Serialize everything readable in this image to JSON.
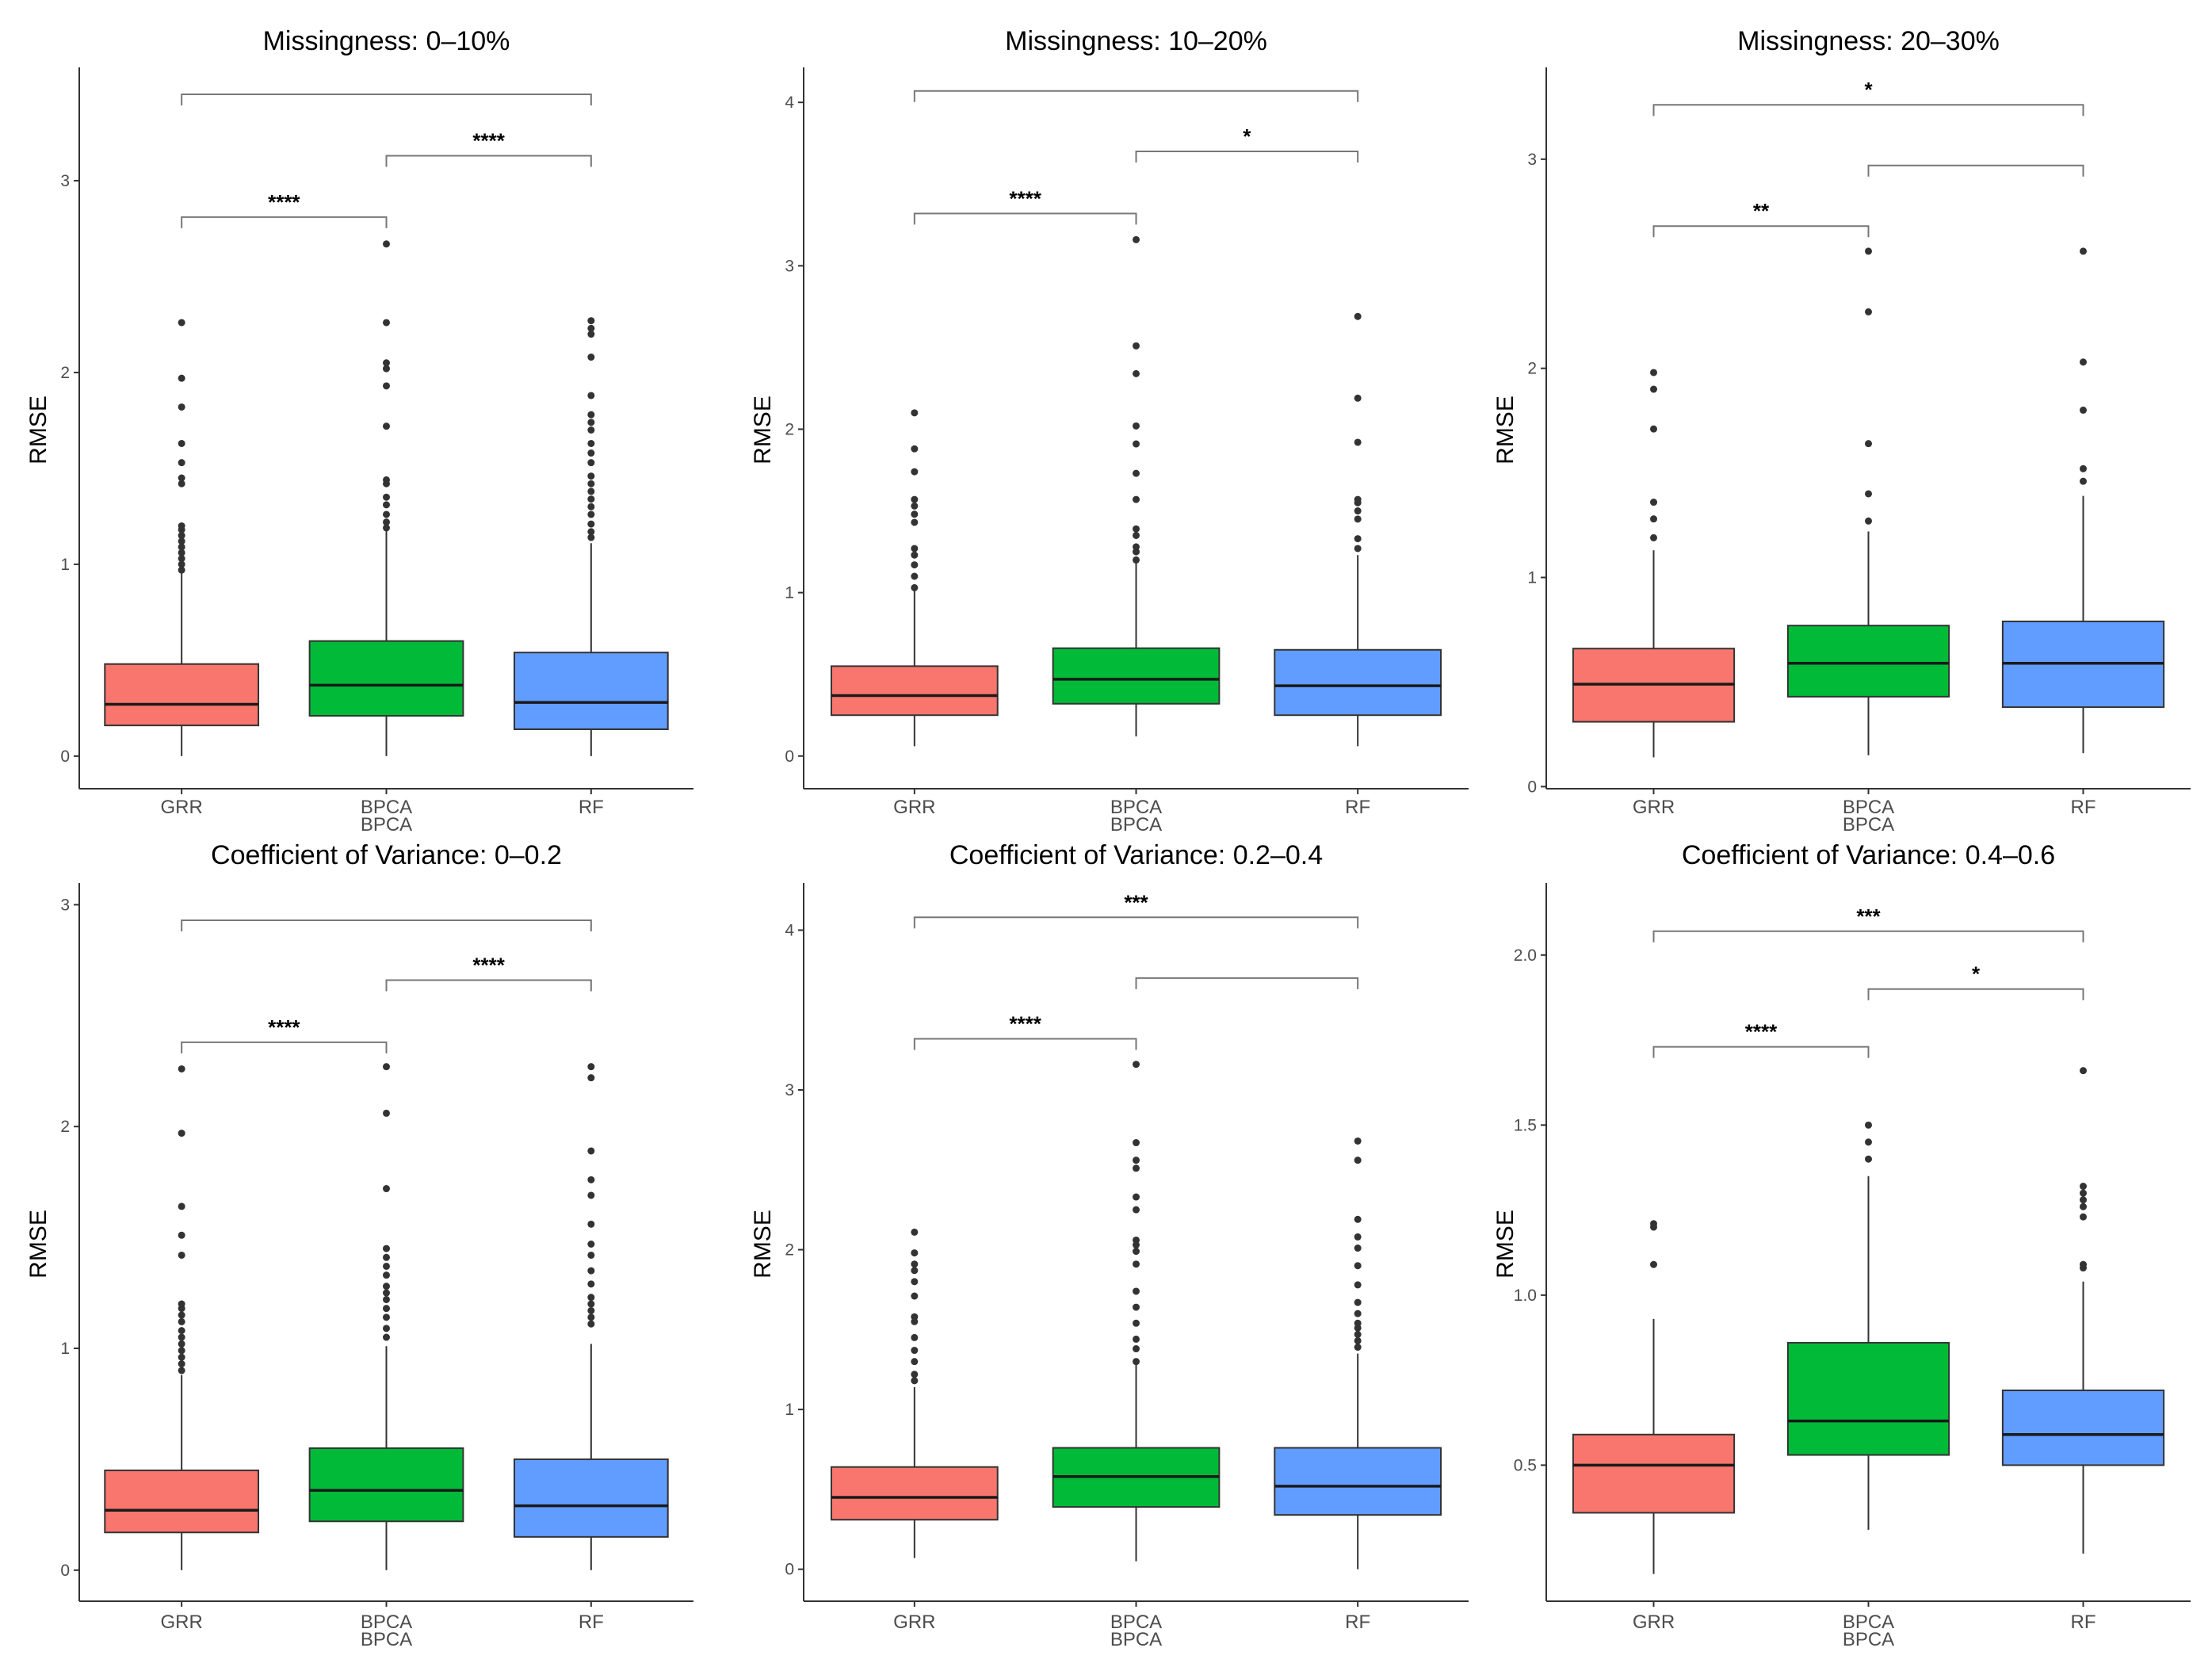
{
  "chart_data": [
    {
      "type": "boxplot",
      "title": "Missingness: 0–10%",
      "xlabel": "BPCA",
      "ylabel": "RMSE",
      "categories": [
        "GRR",
        "BPCA",
        "RF"
      ],
      "colors": [
        "#F8766D",
        "#00BA38",
        "#619CFF"
      ],
      "ylim": [
        -0.17,
        3.57
      ],
      "yticks": [
        0,
        1,
        2,
        3
      ],
      "boxes": [
        {
          "category": "GRR",
          "q1": 0.16,
          "median": 0.27,
          "q3": 0.48,
          "whisker_low": 0.0,
          "whisker_high": 0.96,
          "outliers": [
            0.97,
            1.0,
            1.03,
            1.06,
            1.09,
            1.12,
            1.15,
            1.18,
            1.2,
            1.42,
            1.45,
            1.53,
            1.63,
            1.82,
            1.97,
            2.26
          ]
        },
        {
          "category": "BPCA",
          "q1": 0.21,
          "median": 0.37,
          "q3": 0.6,
          "whisker_low": 0.0,
          "whisker_high": 1.18,
          "outliers": [
            1.19,
            1.22,
            1.26,
            1.31,
            1.35,
            1.42,
            1.44,
            1.72,
            1.93,
            2.02,
            2.05,
            2.26,
            2.67
          ]
        },
        {
          "category": "RF",
          "q1": 0.14,
          "median": 0.28,
          "q3": 0.54,
          "whisker_low": 0.0,
          "whisker_high": 1.11,
          "outliers": [
            1.14,
            1.17,
            1.21,
            1.26,
            1.3,
            1.34,
            1.38,
            1.42,
            1.46,
            1.53,
            1.58,
            1.63,
            1.7,
            1.74,
            1.78,
            1.88,
            2.08,
            2.2,
            2.23,
            2.27
          ]
        }
      ],
      "comparisons": [
        {
          "from": "GRR",
          "to": "BPCA",
          "label": "****",
          "y": 2.81
        },
        {
          "from": "BPCA",
          "to": "RF",
          "label": "****",
          "y": 3.13
        },
        {
          "from": "GRR",
          "to": "RF",
          "label": "",
          "y": 3.45
        }
      ]
    },
    {
      "type": "boxplot",
      "title": "Missingness: 10–20%",
      "xlabel": "BPCA",
      "ylabel": "RMSE",
      "categories": [
        "GRR",
        "BPCA",
        "RF"
      ],
      "colors": [
        "#F8766D",
        "#00BA38",
        "#619CFF"
      ],
      "ylim": [
        -0.2,
        4.19
      ],
      "yticks": [
        0,
        1,
        2,
        3,
        4
      ],
      "boxes": [
        {
          "category": "GRR",
          "q1": 0.25,
          "median": 0.37,
          "q3": 0.55,
          "whisker_low": 0.06,
          "whisker_high": 1.03,
          "outliers": [
            1.03,
            1.1,
            1.17,
            1.23,
            1.27,
            1.43,
            1.48,
            1.53,
            1.57,
            1.74,
            1.88,
            2.1
          ]
        },
        {
          "category": "BPCA",
          "q1": 0.32,
          "median": 0.47,
          "q3": 0.66,
          "whisker_low": 0.12,
          "whisker_high": 1.21,
          "outliers": [
            1.2,
            1.25,
            1.28,
            1.35,
            1.39,
            1.57,
            1.73,
            1.91,
            2.02,
            2.34,
            2.51,
            3.16
          ]
        },
        {
          "category": "RF",
          "q1": 0.25,
          "median": 0.43,
          "q3": 0.65,
          "whisker_low": 0.06,
          "whisker_high": 1.23,
          "outliers": [
            1.27,
            1.33,
            1.45,
            1.5,
            1.55,
            1.57,
            1.92,
            2.19,
            2.69
          ]
        }
      ],
      "comparisons": [
        {
          "from": "GRR",
          "to": "BPCA",
          "label": "****",
          "y": 3.32
        },
        {
          "from": "BPCA",
          "to": "RF",
          "label": "*",
          "y": 3.7
        },
        {
          "from": "GRR",
          "to": "RF",
          "label": "",
          "y": 4.07
        }
      ]
    },
    {
      "type": "boxplot",
      "title": "Missingness: 20–30%",
      "xlabel": "BPCA",
      "ylabel": "RMSE",
      "categories": [
        "GRR",
        "BPCA",
        "RF"
      ],
      "colors": [
        "#F8766D",
        "#00BA38",
        "#619CFF"
      ],
      "ylim": [
        -0.01,
        3.42
      ],
      "yticks": [
        0,
        1,
        2,
        3
      ],
      "boxes": [
        {
          "category": "GRR",
          "q1": 0.31,
          "median": 0.49,
          "q3": 0.66,
          "whisker_low": 0.14,
          "whisker_high": 1.13,
          "outliers": [
            1.19,
            1.28,
            1.36,
            1.71,
            1.9,
            1.98
          ]
        },
        {
          "category": "BPCA",
          "q1": 0.43,
          "median": 0.59,
          "q3": 0.77,
          "whisker_low": 0.15,
          "whisker_high": 1.22,
          "outliers": [
            1.27,
            1.4,
            1.64,
            2.27,
            2.56
          ]
        },
        {
          "category": "RF",
          "q1": 0.38,
          "median": 0.59,
          "q3": 0.79,
          "whisker_low": 0.16,
          "whisker_high": 1.39,
          "outliers": [
            1.46,
            1.52,
            1.8,
            2.03,
            2.56
          ]
        }
      ],
      "comparisons": [
        {
          "from": "GRR",
          "to": "BPCA",
          "label": "**",
          "y": 2.68
        },
        {
          "from": "BPCA",
          "to": "RF",
          "label": "",
          "y": 2.97
        },
        {
          "from": "GRR",
          "to": "RF",
          "label": "*",
          "y": 3.26
        }
      ]
    },
    {
      "type": "boxplot",
      "title": "Coefficient of Variance: 0–0.2",
      "xlabel": "BPCA",
      "ylabel": "RMSE",
      "categories": [
        "GRR",
        "BPCA",
        "RF"
      ],
      "colors": [
        "#F8766D",
        "#00BA38",
        "#619CFF"
      ],
      "ylim": [
        -0.14,
        3.08
      ],
      "yticks": [
        0,
        1,
        2,
        3
      ],
      "boxes": [
        {
          "category": "GRR",
          "q1": 0.17,
          "median": 0.27,
          "q3": 0.45,
          "whisker_low": 0.0,
          "whisker_high": 0.88,
          "outliers": [
            0.9,
            0.93,
            0.96,
            0.99,
            1.02,
            1.05,
            1.08,
            1.12,
            1.15,
            1.18,
            1.2,
            1.42,
            1.51,
            1.64,
            1.97,
            2.26
          ]
        },
        {
          "category": "BPCA",
          "q1": 0.22,
          "median": 0.36,
          "q3": 0.55,
          "whisker_low": 0.0,
          "whisker_high": 1.01,
          "outliers": [
            1.05,
            1.09,
            1.14,
            1.18,
            1.22,
            1.25,
            1.28,
            1.33,
            1.37,
            1.41,
            1.45,
            1.72,
            2.06,
            2.27
          ]
        },
        {
          "category": "RF",
          "q1": 0.15,
          "median": 0.29,
          "q3": 0.5,
          "whisker_low": 0.0,
          "whisker_high": 1.02,
          "outliers": [
            1.11,
            1.14,
            1.17,
            1.2,
            1.23,
            1.29,
            1.35,
            1.42,
            1.47,
            1.56,
            1.69,
            1.76,
            1.89,
            2.22,
            2.27
          ]
        }
      ],
      "comparisons": [
        {
          "from": "GRR",
          "to": "BPCA",
          "label": "****",
          "y": 2.38
        },
        {
          "from": "BPCA",
          "to": "RF",
          "label": "****",
          "y": 2.66
        },
        {
          "from": "GRR",
          "to": "RF",
          "label": "",
          "y": 2.93
        }
      ]
    },
    {
      "type": "boxplot",
      "title": "Coefficient of Variance: 0.2–0.4",
      "xlabel": "BPCA",
      "ylabel": "RMSE",
      "categories": [
        "GRR",
        "BPCA",
        "RF"
      ],
      "colors": [
        "#F8766D",
        "#00BA38",
        "#619CFF"
      ],
      "ylim": [
        -0.2,
        4.27
      ],
      "yticks": [
        0,
        1,
        2,
        3,
        4
      ],
      "boxes": [
        {
          "category": "GRR",
          "q1": 0.31,
          "median": 0.45,
          "q3": 0.64,
          "whisker_low": 0.07,
          "whisker_high": 1.14,
          "outliers": [
            1.18,
            1.22,
            1.3,
            1.37,
            1.45,
            1.55,
            1.58,
            1.71,
            1.8,
            1.87,
            1.91,
            1.98,
            2.11
          ]
        },
        {
          "category": "BPCA",
          "q1": 0.39,
          "median": 0.58,
          "q3": 0.76,
          "whisker_low": 0.05,
          "whisker_high": 1.29,
          "outliers": [
            1.3,
            1.38,
            1.44,
            1.54,
            1.64,
            1.74,
            1.91,
            1.99,
            2.03,
            2.06,
            2.25,
            2.33,
            2.51,
            2.56,
            2.67,
            3.16
          ]
        },
        {
          "category": "RF",
          "q1": 0.34,
          "median": 0.52,
          "q3": 0.76,
          "whisker_low": 0.0,
          "whisker_high": 1.35,
          "outliers": [
            1.39,
            1.43,
            1.47,
            1.51,
            1.54,
            1.6,
            1.67,
            1.78,
            1.9,
            2.01,
            2.08,
            2.19,
            2.56,
            2.68
          ]
        }
      ],
      "comparisons": [
        {
          "from": "GRR",
          "to": "BPCA",
          "label": "****",
          "y": 3.32
        },
        {
          "from": "BPCA",
          "to": "RF",
          "label": "",
          "y": 3.7
        },
        {
          "from": "GRR",
          "to": "RF",
          "label": "***",
          "y": 4.08
        }
      ]
    },
    {
      "type": "boxplot",
      "title": "Coefficient of Variance: 0.4–0.6",
      "xlabel": "BPCA",
      "ylabel": "RMSE",
      "categories": [
        "GRR",
        "BPCA",
        "RF"
      ],
      "colors": [
        "#F8766D",
        "#00BA38",
        "#619CFF"
      ],
      "ylim": [
        0.1,
        2.2
      ],
      "yticks": [
        0.5,
        1.0,
        1.5,
        2.0
      ],
      "ytick_labels": [
        "0.5",
        "1.0",
        "1.5",
        "2.0"
      ],
      "boxes": [
        {
          "category": "GRR",
          "q1": 0.36,
          "median": 0.5,
          "q3": 0.59,
          "whisker_low": 0.18,
          "whisker_high": 0.93,
          "outliers": [
            1.09,
            1.2,
            1.21
          ]
        },
        {
          "category": "BPCA",
          "q1": 0.53,
          "median": 0.63,
          "q3": 0.86,
          "whisker_low": 0.31,
          "whisker_high": 1.35,
          "outliers": [
            1.4,
            1.45,
            1.5
          ]
        },
        {
          "category": "RF",
          "q1": 0.5,
          "median": 0.59,
          "q3": 0.72,
          "whisker_low": 0.24,
          "whisker_high": 1.04,
          "outliers": [
            1.08,
            1.09,
            1.23,
            1.26,
            1.28,
            1.3,
            1.32,
            1.66
          ]
        }
      ],
      "comparisons": [
        {
          "from": "GRR",
          "to": "BPCA",
          "label": "****",
          "y": 1.73
        },
        {
          "from": "BPCA",
          "to": "RF",
          "label": "*",
          "y": 1.9
        },
        {
          "from": "GRR",
          "to": "RF",
          "label": "***",
          "y": 2.07
        }
      ]
    }
  ]
}
